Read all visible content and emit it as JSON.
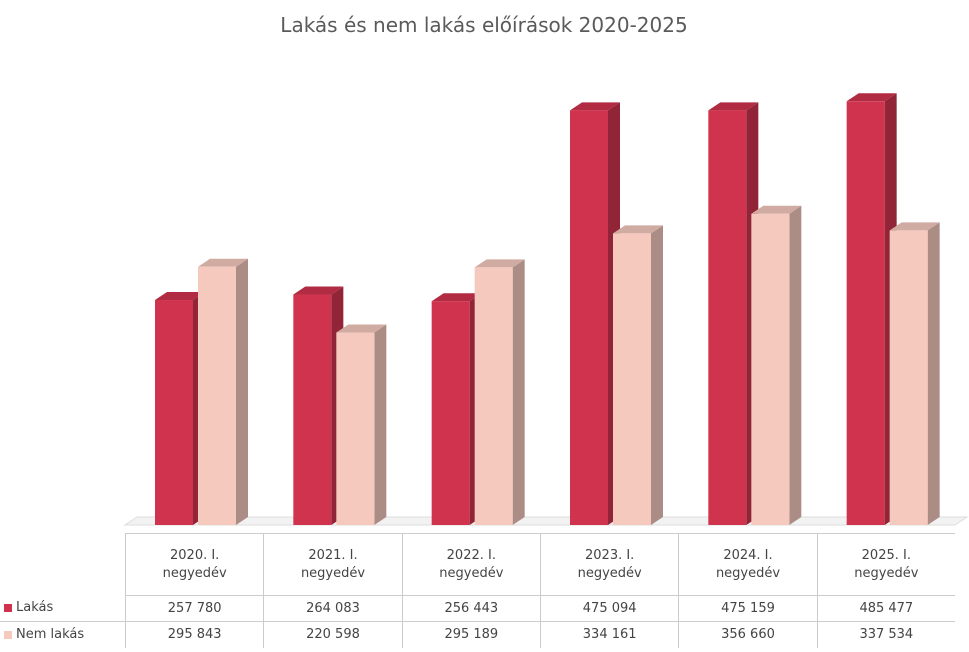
{
  "chart_data": {
    "type": "bar3d",
    "title": "Lakás és nem lakás előírások 2020-2025",
    "categories": [
      "2020. I. negyedév",
      "2021. I. negyedév",
      "2022. I. negyedév",
      "2023. I. negyedév",
      "2024. I. negyedév",
      "2025. I. negyedév"
    ],
    "series": [
      {
        "name": "Lakás",
        "color": "#d0334e",
        "values": [
          257780,
          264083,
          256443,
          475094,
          475159,
          485477
        ],
        "value_labels": [
          "257 780",
          "264 083",
          "256 443",
          "475 094",
          "475 159",
          "485 477"
        ]
      },
      {
        "name": "Nem lakás",
        "color": "#f5c9be",
        "values": [
          295843,
          220598,
          295189,
          334161,
          356660,
          337534
        ],
        "value_labels": [
          "295 843",
          "220 598",
          "295 189",
          "334 161",
          "356 660",
          "337 534"
        ]
      }
    ],
    "ylim": [
      0,
      550000
    ]
  }
}
